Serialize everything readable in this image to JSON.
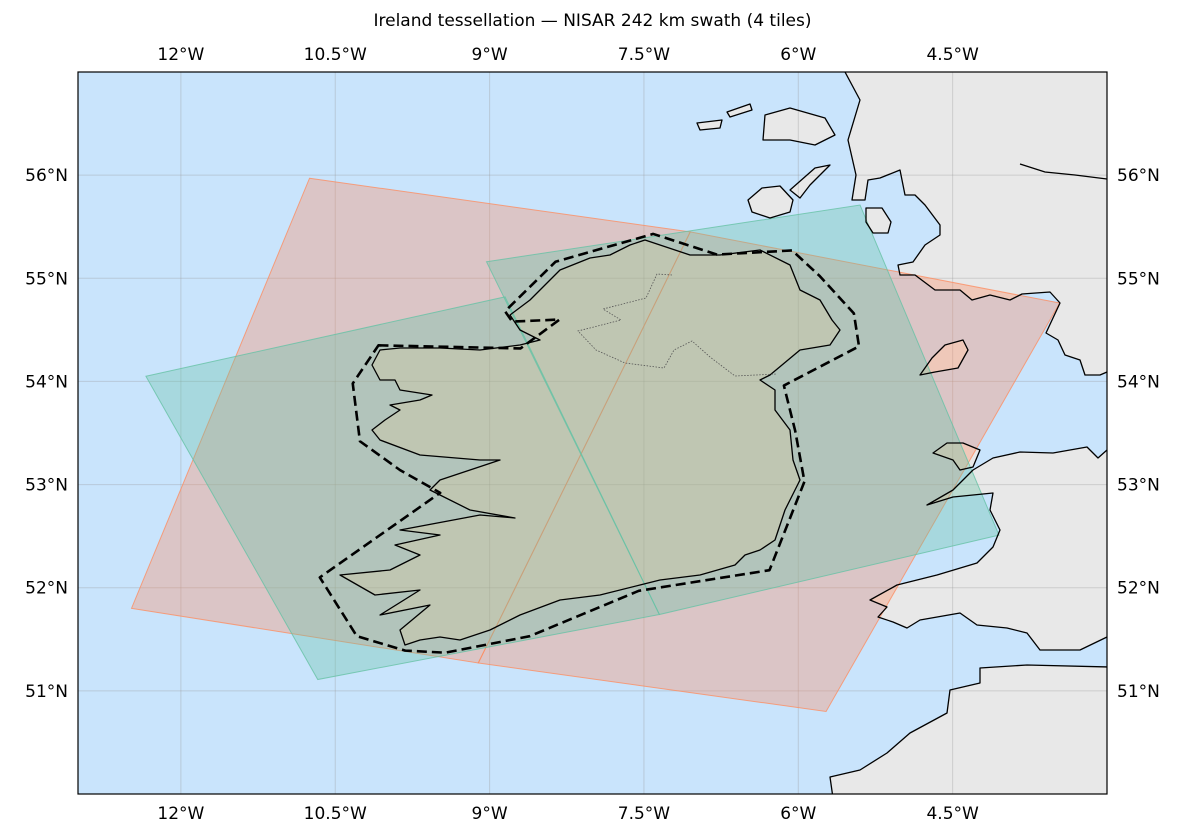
{
  "title": "Ireland tessellation — NISAR 242 km swath (4 tiles)",
  "map": {
    "projection": "PlateCarree",
    "extent": {
      "lon_min": -13.0,
      "lon_max": -3.0,
      "lat_min": 50.0,
      "lat_max": 57.0
    },
    "grid": true,
    "ocean_color": "#c9e4fc",
    "land_color": "#e8e8e8",
    "lon_ticks": [
      {
        "value": -12.0,
        "label": "12°W"
      },
      {
        "value": -10.5,
        "label": "10.5°W"
      },
      {
        "value": -9.0,
        "label": "9°W"
      },
      {
        "value": -7.5,
        "label": "7.5°W"
      },
      {
        "value": -6.0,
        "label": "6°W"
      },
      {
        "value": -4.5,
        "label": "4.5°W"
      }
    ],
    "lat_ticks": [
      {
        "value": 56,
        "label": "56°N"
      },
      {
        "value": 55,
        "label": "55°N"
      },
      {
        "value": 54,
        "label": "54°N"
      },
      {
        "value": 53,
        "label": "53°N"
      },
      {
        "value": 52,
        "label": "52°N"
      },
      {
        "value": 51,
        "label": "51°N"
      }
    ],
    "tiles": [
      {
        "color": "#fc8d62",
        "coords": [
          [
            -10.75,
            55.97
          ],
          [
            -7.05,
            55.45
          ],
          [
            -9.11,
            51.27
          ],
          [
            -12.48,
            51.8
          ]
        ]
      },
      {
        "color": "#fc8d62",
        "coords": [
          [
            -7.05,
            55.45
          ],
          [
            -3.46,
            54.76
          ],
          [
            -5.73,
            50.8
          ],
          [
            -9.11,
            51.27
          ]
        ]
      },
      {
        "color": "#66c2a5",
        "coords": [
          [
            -12.34,
            54.05
          ],
          [
            -8.85,
            54.82
          ],
          [
            -7.35,
            51.74
          ],
          [
            -10.67,
            51.11
          ]
        ]
      },
      {
        "color": "#66c2a5",
        "coords": [
          [
            -9.03,
            55.16
          ],
          [
            -5.4,
            55.71
          ],
          [
            -4.05,
            52.51
          ],
          [
            -7.35,
            51.74
          ]
        ]
      }
    ],
    "aoi": {
      "style": "dashed",
      "color": "#000000",
      "coords": [
        [
          -10.08,
          54.35
        ],
        [
          -8.7,
          54.32
        ],
        [
          -8.32,
          54.6
        ],
        [
          -8.78,
          54.58
        ],
        [
          -8.85,
          54.68
        ],
        [
          -8.36,
          55.16
        ],
        [
          -7.41,
          55.43
        ],
        [
          -6.79,
          55.23
        ],
        [
          -6.06,
          55.27
        ],
        [
          -5.79,
          55.02
        ],
        [
          -5.46,
          54.66
        ],
        [
          -5.41,
          54.34
        ],
        [
          -6.14,
          53.96
        ],
        [
          -6.03,
          53.52
        ],
        [
          -5.94,
          53.03
        ],
        [
          -6.28,
          52.17
        ],
        [
          -7.55,
          51.97
        ],
        [
          -8.61,
          51.53
        ],
        [
          -9.43,
          51.37
        ],
        [
          -9.82,
          51.39
        ],
        [
          -10.29,
          51.53
        ],
        [
          -10.65,
          52.1
        ],
        [
          -9.48,
          52.92
        ],
        [
          -9.87,
          53.14
        ],
        [
          -10.26,
          53.42
        ],
        [
          -10.33,
          53.98
        ]
      ]
    }
  }
}
